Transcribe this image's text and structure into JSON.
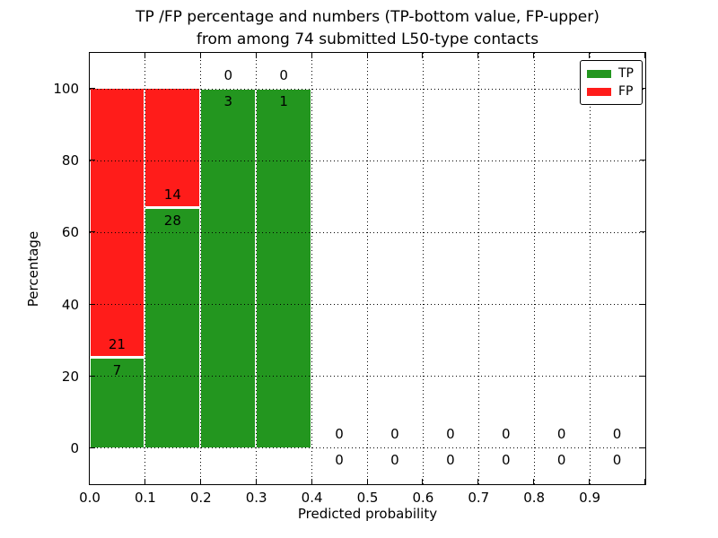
{
  "chart_data": {
    "type": "stacked-bar",
    "title_line1": "TP /FP percentage and numbers (TP-bottom value, FP-upper)",
    "title_line2": "from among 74 submitted L50-type contacts",
    "xlabel": "Predicted probability",
    "ylabel": "Percentage",
    "xlim": [
      0.0,
      1.0
    ],
    "ylim": [
      -10,
      110
    ],
    "xticks": [
      "0.0",
      "0.1",
      "0.2",
      "0.3",
      "0.4",
      "0.5",
      "0.6",
      "0.7",
      "0.8",
      "0.9"
    ],
    "yticks": [
      0,
      20,
      40,
      60,
      80,
      100
    ],
    "grid": "dotted, drawn above bars",
    "total_contacts": 74,
    "legend": {
      "position": "upper-right",
      "entries": [
        {
          "label": "TP",
          "color": "#23961f"
        },
        {
          "label": "FP",
          "color": "#ff1c1a"
        }
      ]
    },
    "bins": [
      {
        "x_start": 0.0,
        "x_end": 0.1,
        "tp_count": 7,
        "fp_count": 21,
        "tp_pct": 25.0,
        "fp_pct": 75.0
      },
      {
        "x_start": 0.1,
        "x_end": 0.2,
        "tp_count": 28,
        "fp_count": 14,
        "tp_pct": 66.667,
        "fp_pct": 33.333
      },
      {
        "x_start": 0.2,
        "x_end": 0.3,
        "tp_count": 3,
        "fp_count": 0,
        "tp_pct": 100.0,
        "fp_pct": 0.0
      },
      {
        "x_start": 0.3,
        "x_end": 0.4,
        "tp_count": 1,
        "fp_count": 0,
        "tp_pct": 100.0,
        "fp_pct": 0.0
      },
      {
        "x_start": 0.4,
        "x_end": 0.5,
        "tp_count": 0,
        "fp_count": 0,
        "tp_pct": 0.0,
        "fp_pct": 0.0
      },
      {
        "x_start": 0.5,
        "x_end": 0.6,
        "tp_count": 0,
        "fp_count": 0,
        "tp_pct": 0.0,
        "fp_pct": 0.0
      },
      {
        "x_start": 0.6,
        "x_end": 0.7,
        "tp_count": 0,
        "fp_count": 0,
        "tp_pct": 0.0,
        "fp_pct": 0.0
      },
      {
        "x_start": 0.7,
        "x_end": 0.8,
        "tp_count": 0,
        "fp_count": 0,
        "tp_pct": 0.0,
        "fp_pct": 0.0
      },
      {
        "x_start": 0.8,
        "x_end": 0.9,
        "tp_count": 0,
        "fp_count": 0,
        "tp_pct": 0.0,
        "fp_pct": 0.0
      },
      {
        "x_start": 0.9,
        "x_end": 1.0,
        "tp_count": 0,
        "fp_count": 0,
        "tp_pct": 0.0,
        "fp_pct": 0.0
      }
    ],
    "colors": {
      "tp": "#23961f",
      "fp": "#ff1c1a",
      "grid": "#000000",
      "frame": "#000000",
      "background": "#ffffff"
    }
  }
}
